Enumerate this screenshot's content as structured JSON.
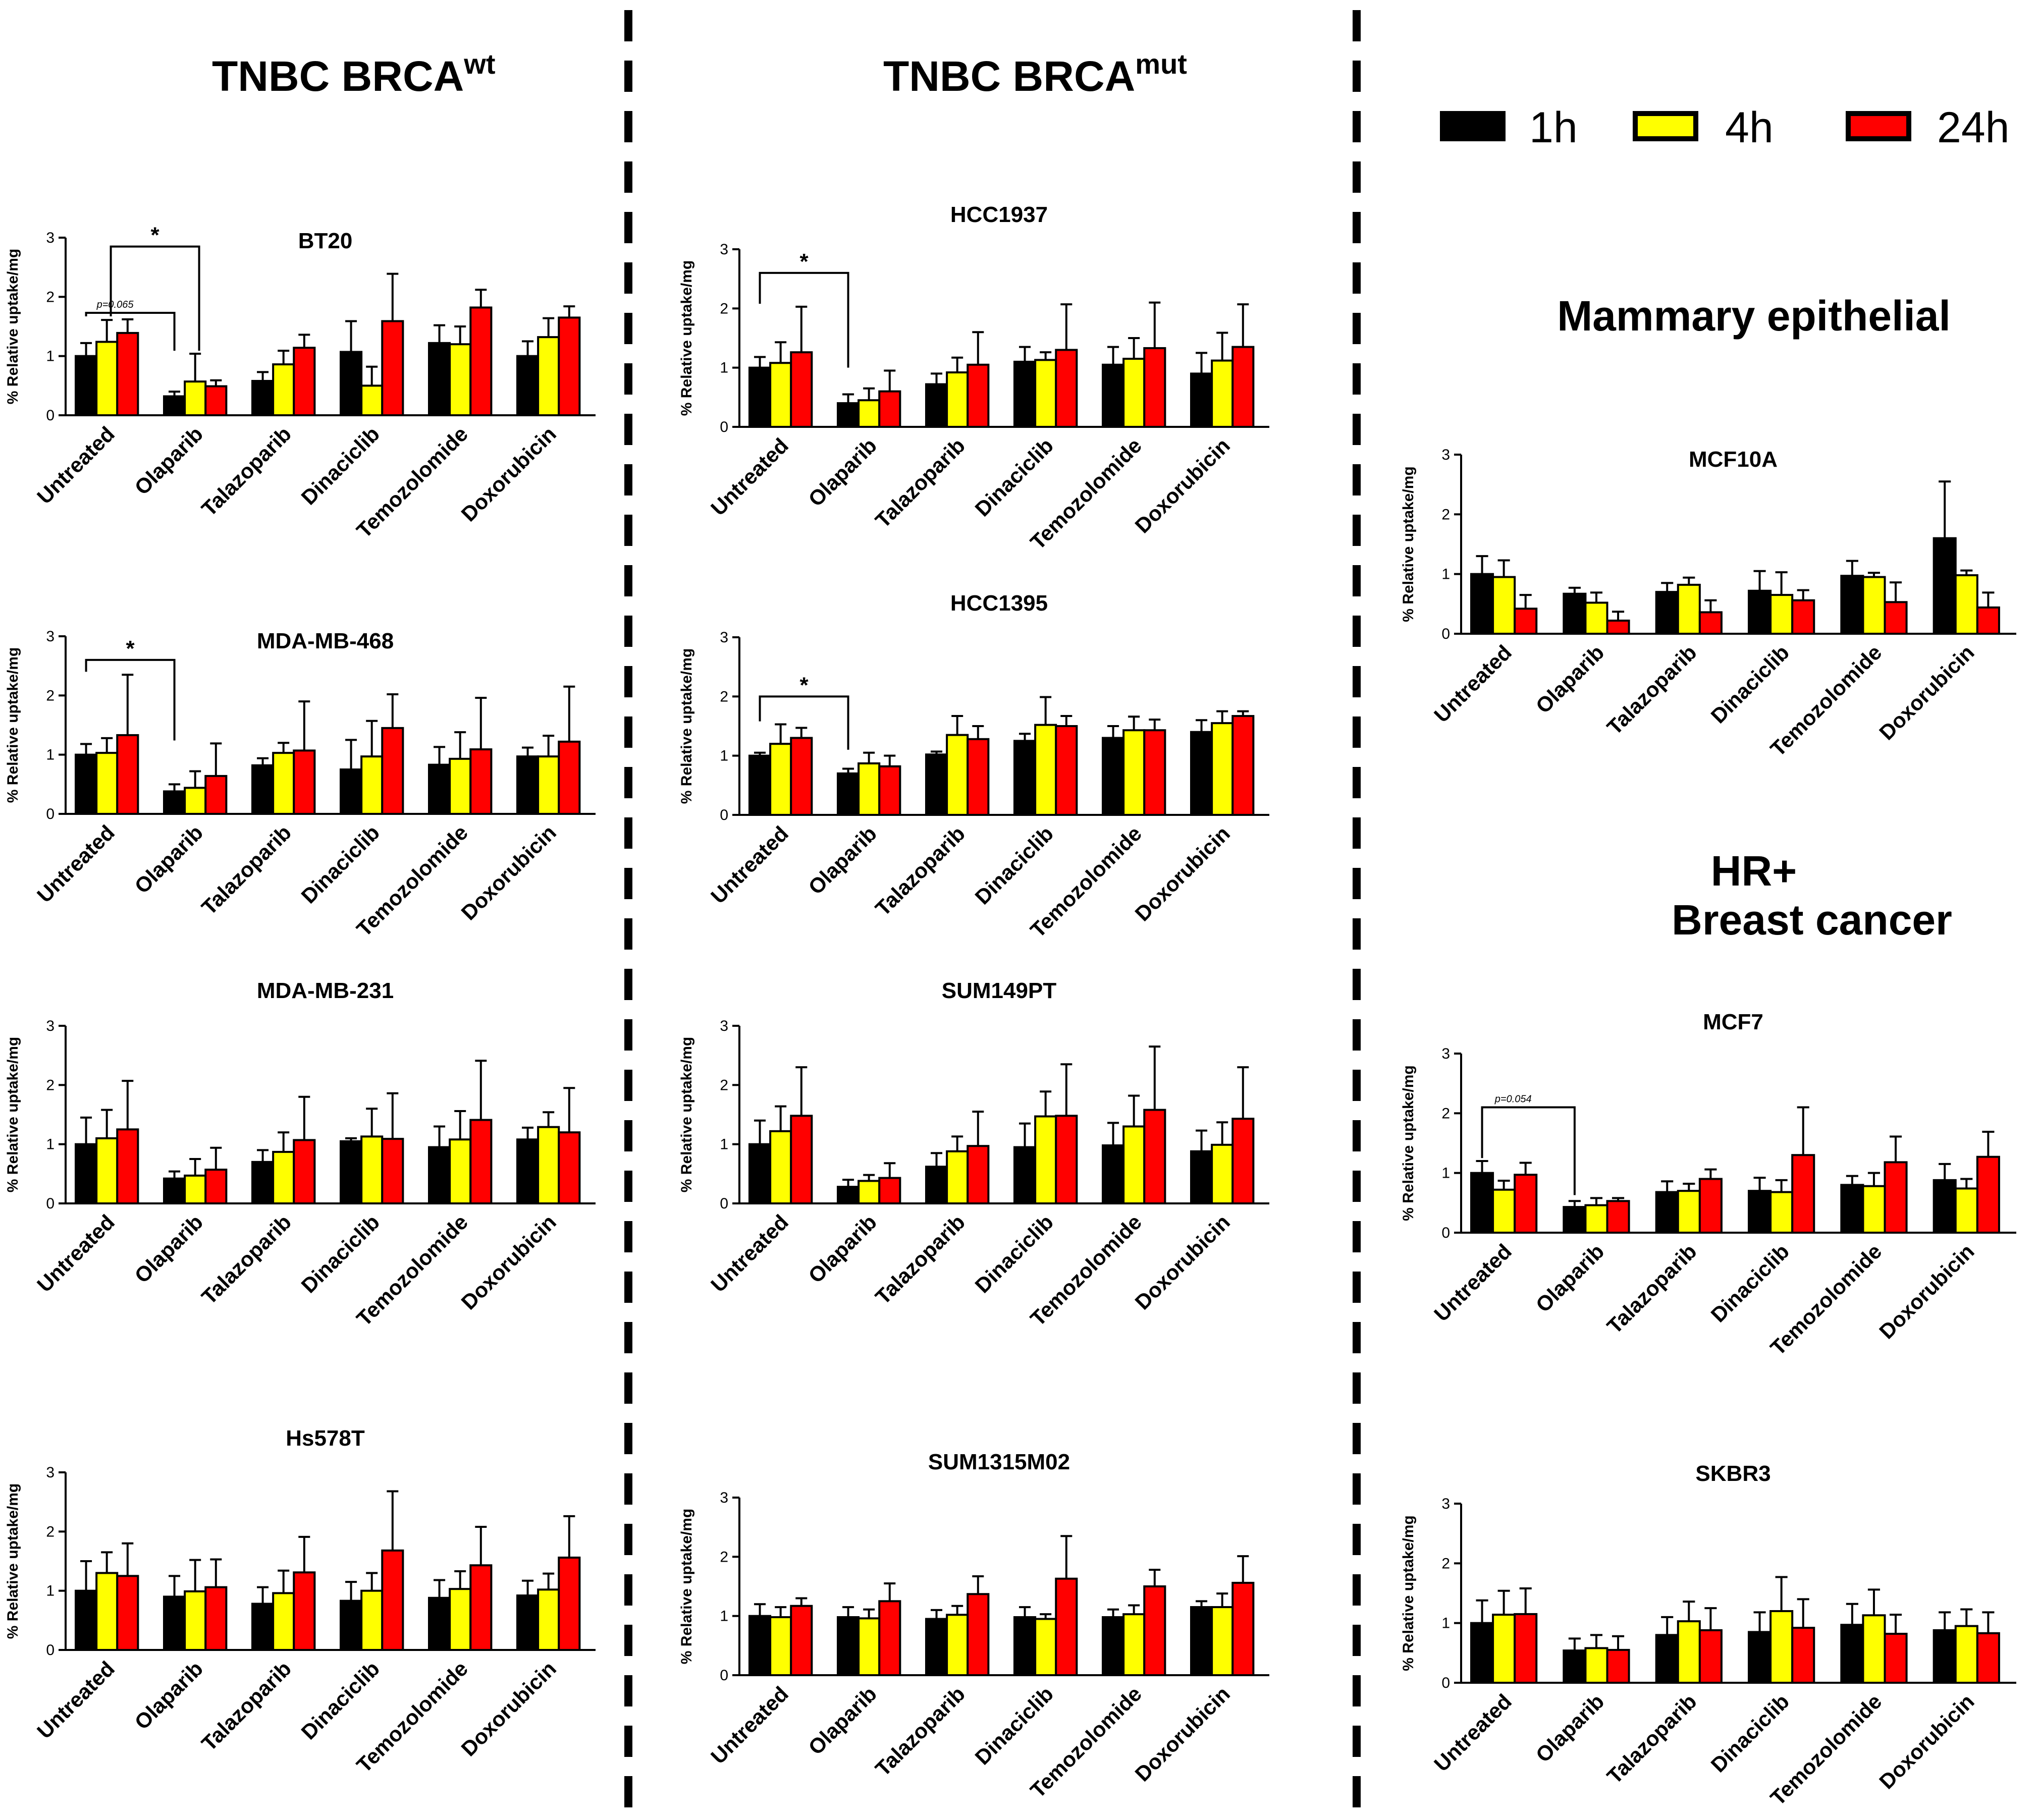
{
  "colors": {
    "1h": "#000000",
    "4h": "#ffff00",
    "24h": "#ff0000"
  },
  "sections": [
    {
      "id": "brcawt",
      "title": "TNBC BRCA",
      "superscript": "wt"
    },
    {
      "id": "brcamut",
      "title": "TNBC BRCA",
      "superscript": "mut"
    },
    {
      "id": "mammary",
      "title": "Mammary epithelial",
      "superscript": ""
    },
    {
      "id": "hrplus",
      "title": "HR+",
      "title2": "Breast cancer",
      "superscript": ""
    }
  ],
  "legend": [
    {
      "label": "1h",
      "color": "#000000"
    },
    {
      "label": "4h",
      "color": "#ffff00"
    },
    {
      "label": "24h",
      "color": "#ff0000"
    }
  ],
  "chart_data": [
    {
      "id": "BT20",
      "type": "bar",
      "title": "BT20",
      "ylabel": "% Relative uptake/mg",
      "ylim": [
        0,
        3
      ],
      "yticks": [
        0,
        1,
        2,
        3
      ],
      "categories": [
        "Untreated",
        "Olaparib",
        "Talazoparib",
        "Dinaciclib",
        "Temozolomide",
        "Doxorubicin"
      ],
      "series": [
        {
          "name": "1h",
          "values": [
            1.0,
            0.32,
            0.58,
            1.07,
            1.22,
            1.0
          ],
          "errors": [
            0.22,
            0.08,
            0.15,
            0.52,
            0.3,
            0.25
          ]
        },
        {
          "name": "4h",
          "values": [
            1.24,
            0.57,
            0.86,
            0.5,
            1.2,
            1.32
          ],
          "errors": [
            0.37,
            0.47,
            0.23,
            0.32,
            0.3,
            0.32
          ]
        },
        {
          "name": "24h",
          "values": [
            1.39,
            0.49,
            1.14,
            1.59,
            1.82,
            1.65
          ],
          "errors": [
            0.23,
            0.1,
            0.22,
            0.8,
            0.3,
            0.19
          ]
        }
      ],
      "annotations": [
        {
          "from": 0,
          "to": 1,
          "level": 1.73,
          "label": "p=0.065",
          "italic": true
        },
        {
          "from": 0.28,
          "to": 1.28,
          "level": 2.85,
          "label": "*",
          "italic": false
        }
      ]
    },
    {
      "id": "MDA-MB-468",
      "type": "bar",
      "title": "MDA-MB-468",
      "ylabel": "% Relative uptake/mg",
      "ylim": [
        0,
        3
      ],
      "yticks": [
        0,
        1,
        2,
        3
      ],
      "categories": [
        "Untreated",
        "Olaparib",
        "Talazoparib",
        "Dinaciclib",
        "Temozolomide",
        "Doxorubicin"
      ],
      "series": [
        {
          "name": "1h",
          "values": [
            1.0,
            0.38,
            0.82,
            0.75,
            0.83,
            0.97
          ],
          "errors": [
            0.18,
            0.12,
            0.12,
            0.5,
            0.3,
            0.15
          ]
        },
        {
          "name": "4h",
          "values": [
            1.03,
            0.44,
            1.03,
            0.97,
            0.93,
            0.97
          ],
          "errors": [
            0.25,
            0.28,
            0.17,
            0.6,
            0.45,
            0.35
          ]
        },
        {
          "name": "24h",
          "values": [
            1.33,
            0.64,
            1.07,
            1.45,
            1.09,
            1.22
          ],
          "errors": [
            1.02,
            0.55,
            0.83,
            0.57,
            0.87,
            0.93
          ]
        }
      ],
      "annotations": [
        {
          "from": 0,
          "to": 1,
          "level": 2.6,
          "label": "*",
          "italic": false
        }
      ]
    },
    {
      "id": "MDA-MB-231",
      "type": "bar",
      "title": "MDA-MB-231",
      "ylabel": "% Relative uptake/mg",
      "ylim": [
        0,
        3
      ],
      "yticks": [
        0,
        1,
        2,
        3
      ],
      "categories": [
        "Untreated",
        "Olaparib",
        "Talazoparib",
        "Dinaciclib",
        "Temozolomide",
        "Doxorubicin"
      ],
      "series": [
        {
          "name": "1h",
          "values": [
            1.0,
            0.42,
            0.7,
            1.05,
            0.95,
            1.08
          ],
          "errors": [
            0.45,
            0.12,
            0.2,
            0.05,
            0.35,
            0.2
          ]
        },
        {
          "name": "4h",
          "values": [
            1.1,
            0.47,
            0.87,
            1.13,
            1.08,
            1.29
          ],
          "errors": [
            0.48,
            0.28,
            0.33,
            0.47,
            0.48,
            0.25
          ]
        },
        {
          "name": "24h",
          "values": [
            1.25,
            0.57,
            1.07,
            1.09,
            1.41,
            1.2
          ],
          "errors": [
            0.82,
            0.37,
            0.73,
            0.77,
            1.0,
            0.75
          ]
        }
      ],
      "annotations": []
    },
    {
      "id": "Hs578T",
      "type": "bar",
      "title": "Hs578T",
      "ylabel": "% Relative uptake/mg",
      "ylim": [
        0,
        3
      ],
      "yticks": [
        0,
        1,
        2,
        3
      ],
      "categories": [
        "Untreated",
        "Olaparib",
        "Talazoparib",
        "Dinaciclib",
        "Temozolomide",
        "Doxorubicin"
      ],
      "series": [
        {
          "name": "1h",
          "values": [
            1.0,
            0.9,
            0.78,
            0.83,
            0.88,
            0.92
          ],
          "errors": [
            0.5,
            0.35,
            0.28,
            0.32,
            0.3,
            0.25
          ]
        },
        {
          "name": "4h",
          "values": [
            1.3,
            0.99,
            0.96,
            1.0,
            1.03,
            1.02
          ],
          "errors": [
            0.35,
            0.53,
            0.38,
            0.3,
            0.3,
            0.27
          ]
        },
        {
          "name": "24h",
          "values": [
            1.25,
            1.06,
            1.31,
            1.68,
            1.43,
            1.56
          ],
          "errors": [
            0.55,
            0.47,
            0.6,
            1.0,
            0.65,
            0.7
          ]
        }
      ],
      "annotations": []
    },
    {
      "id": "HCC1937",
      "type": "bar",
      "title": "HCC1937",
      "ylabel": "% Relative uptake/mg",
      "ylim": [
        0,
        3
      ],
      "yticks": [
        0,
        1,
        2,
        3
      ],
      "categories": [
        "Untreated",
        "Olaparib",
        "Talazoparib",
        "Dinaciclib",
        "Temozolomide",
        "Doxorubicin"
      ],
      "series": [
        {
          "name": "1h",
          "values": [
            1.0,
            0.4,
            0.72,
            1.1,
            1.05,
            0.9
          ],
          "errors": [
            0.18,
            0.15,
            0.18,
            0.25,
            0.3,
            0.35
          ]
        },
        {
          "name": "4h",
          "values": [
            1.08,
            0.45,
            0.92,
            1.13,
            1.15,
            1.12
          ],
          "errors": [
            0.35,
            0.2,
            0.25,
            0.13,
            0.35,
            0.47
          ]
        },
        {
          "name": "24h",
          "values": [
            1.26,
            0.6,
            1.05,
            1.3,
            1.33,
            1.35
          ],
          "errors": [
            0.77,
            0.35,
            0.55,
            0.77,
            0.77,
            0.72
          ]
        }
      ],
      "annotations": [
        {
          "from": 0,
          "to": 1,
          "level": 2.6,
          "label": "*",
          "italic": false
        }
      ]
    },
    {
      "id": "HCC1395",
      "type": "bar",
      "title": "HCC1395",
      "ylabel": "% Relative uptake/mg",
      "ylim": [
        0,
        3
      ],
      "yticks": [
        0,
        1,
        2,
        3
      ],
      "categories": [
        "Untreated",
        "Olaparib",
        "Talazoparib",
        "Dinaciclib",
        "Temozolomide",
        "Doxorubicin"
      ],
      "series": [
        {
          "name": "1h",
          "values": [
            1.0,
            0.7,
            1.02,
            1.25,
            1.3,
            1.4
          ],
          "errors": [
            0.05,
            0.08,
            0.05,
            0.12,
            0.2,
            0.2
          ]
        },
        {
          "name": "4h",
          "values": [
            1.2,
            0.87,
            1.35,
            1.52,
            1.43,
            1.55
          ],
          "errors": [
            0.33,
            0.18,
            0.32,
            0.47,
            0.23,
            0.2
          ]
        },
        {
          "name": "24h",
          "values": [
            1.3,
            0.82,
            1.28,
            1.5,
            1.43,
            1.67
          ],
          "errors": [
            0.17,
            0.18,
            0.22,
            0.17,
            0.18,
            0.08
          ]
        }
      ],
      "annotations": [
        {
          "from": 0,
          "to": 1,
          "level": 2.0,
          "label": "*",
          "italic": false
        }
      ]
    },
    {
      "id": "SUM149PT",
      "type": "bar",
      "title": "SUM149PT",
      "ylabel": "% Relative uptake/mg",
      "ylim": [
        0,
        3
      ],
      "yticks": [
        0,
        1,
        2,
        3
      ],
      "categories": [
        "Untreated",
        "Olaparib",
        "Talazoparib",
        "Dinaciclib",
        "Temozolomide",
        "Doxorubicin"
      ],
      "series": [
        {
          "name": "1h",
          "values": [
            1.0,
            0.28,
            0.62,
            0.95,
            0.98,
            0.88
          ],
          "errors": [
            0.4,
            0.12,
            0.23,
            0.4,
            0.38,
            0.35
          ]
        },
        {
          "name": "4h",
          "values": [
            1.22,
            0.38,
            0.88,
            1.47,
            1.3,
            0.99
          ],
          "errors": [
            0.42,
            0.1,
            0.25,
            0.42,
            0.52,
            0.38
          ]
        },
        {
          "name": "24h",
          "values": [
            1.48,
            0.43,
            0.97,
            1.48,
            1.58,
            1.43
          ],
          "errors": [
            0.82,
            0.25,
            0.58,
            0.87,
            1.07,
            0.87
          ]
        }
      ],
      "annotations": []
    },
    {
      "id": "SUM1315M02",
      "type": "bar",
      "title": "SUM1315M02",
      "ylabel": "% Relative uptake/mg",
      "ylim": [
        0,
        3
      ],
      "yticks": [
        0,
        1,
        2,
        3
      ],
      "categories": [
        "Untreated",
        "Olaparib",
        "Talazoparib",
        "Dinaciclib",
        "Temozolomide",
        "Doxorubicin"
      ],
      "series": [
        {
          "name": "1h",
          "values": [
            1.0,
            0.98,
            0.95,
            0.98,
            0.98,
            1.15
          ],
          "errors": [
            0.2,
            0.17,
            0.15,
            0.17,
            0.13,
            0.1
          ]
        },
        {
          "name": "4h",
          "values": [
            0.98,
            0.96,
            1.02,
            0.95,
            1.03,
            1.15
          ],
          "errors": [
            0.17,
            0.15,
            0.15,
            0.08,
            0.15,
            0.23
          ]
        },
        {
          "name": "24h",
          "values": [
            1.17,
            1.25,
            1.37,
            1.63,
            1.5,
            1.56
          ],
          "errors": [
            0.13,
            0.3,
            0.3,
            0.72,
            0.28,
            0.45
          ]
        }
      ],
      "annotations": []
    },
    {
      "id": "MCF10A",
      "type": "bar",
      "title": "MCF10A",
      "ylabel": "% Relative uptake/mg",
      "ylim": [
        0,
        3
      ],
      "yticks": [
        0,
        1,
        2,
        3
      ],
      "categories": [
        "Untreated",
        "Olaparib",
        "Talazoparib",
        "Dinaciclib",
        "Temozolomide",
        "Doxorubicin"
      ],
      "series": [
        {
          "name": "1h",
          "values": [
            1.0,
            0.67,
            0.7,
            0.72,
            0.97,
            1.6
          ],
          "errors": [
            0.3,
            0.1,
            0.15,
            0.33,
            0.25,
            0.95
          ]
        },
        {
          "name": "4h",
          "values": [
            0.95,
            0.52,
            0.82,
            0.65,
            0.95,
            0.98
          ],
          "errors": [
            0.28,
            0.17,
            0.12,
            0.38,
            0.07,
            0.08
          ]
        },
        {
          "name": "24h",
          "values": [
            0.42,
            0.22,
            0.36,
            0.56,
            0.53,
            0.44
          ],
          "errors": [
            0.23,
            0.15,
            0.2,
            0.17,
            0.33,
            0.25
          ]
        }
      ],
      "annotations": []
    },
    {
      "id": "MCF7",
      "type": "bar",
      "title": "MCF7",
      "ylabel": "% Relative uptake/mg",
      "ylim": [
        0,
        3
      ],
      "yticks": [
        0,
        1,
        2,
        3
      ],
      "categories": [
        "Untreated",
        "Olaparib",
        "Talazoparib",
        "Dinaciclib",
        "Temozolomide",
        "Doxorubicin"
      ],
      "series": [
        {
          "name": "1h",
          "values": [
            1.0,
            0.43,
            0.68,
            0.7,
            0.8,
            0.88
          ],
          "errors": [
            0.2,
            0.1,
            0.18,
            0.22,
            0.15,
            0.27
          ]
        },
        {
          "name": "4h",
          "values": [
            0.72,
            0.46,
            0.7,
            0.68,
            0.78,
            0.74
          ],
          "errors": [
            0.15,
            0.12,
            0.12,
            0.2,
            0.22,
            0.16
          ]
        },
        {
          "name": "24h",
          "values": [
            0.97,
            0.53,
            0.9,
            1.3,
            1.18,
            1.27
          ],
          "errors": [
            0.2,
            0.05,
            0.16,
            0.8,
            0.43,
            0.42
          ]
        }
      ],
      "annotations": [
        {
          "from": 0,
          "to": 1,
          "level": 2.1,
          "label": "p=0.054",
          "italic": true
        }
      ]
    },
    {
      "id": "SKBR3",
      "type": "bar",
      "title": "SKBR3",
      "ylabel": "% Relative uptake/mg",
      "ylim": [
        0,
        3
      ],
      "yticks": [
        0,
        1,
        2,
        3
      ],
      "categories": [
        "Untreated",
        "Olaparib",
        "Talazoparib",
        "Dinaciclib",
        "Temozolomide",
        "Doxorubicin"
      ],
      "series": [
        {
          "name": "1h",
          "values": [
            1.0,
            0.54,
            0.8,
            0.85,
            0.97,
            0.88
          ],
          "errors": [
            0.38,
            0.2,
            0.3,
            0.33,
            0.35,
            0.3
          ]
        },
        {
          "name": "4h",
          "values": [
            1.14,
            0.58,
            1.03,
            1.2,
            1.13,
            0.95
          ],
          "errors": [
            0.4,
            0.22,
            0.33,
            0.57,
            0.43,
            0.28
          ]
        },
        {
          "name": "24h",
          "values": [
            1.15,
            0.55,
            0.88,
            0.92,
            0.82,
            0.83
          ],
          "errors": [
            0.43,
            0.23,
            0.37,
            0.48,
            0.32,
            0.35
          ]
        }
      ],
      "annotations": []
    }
  ]
}
